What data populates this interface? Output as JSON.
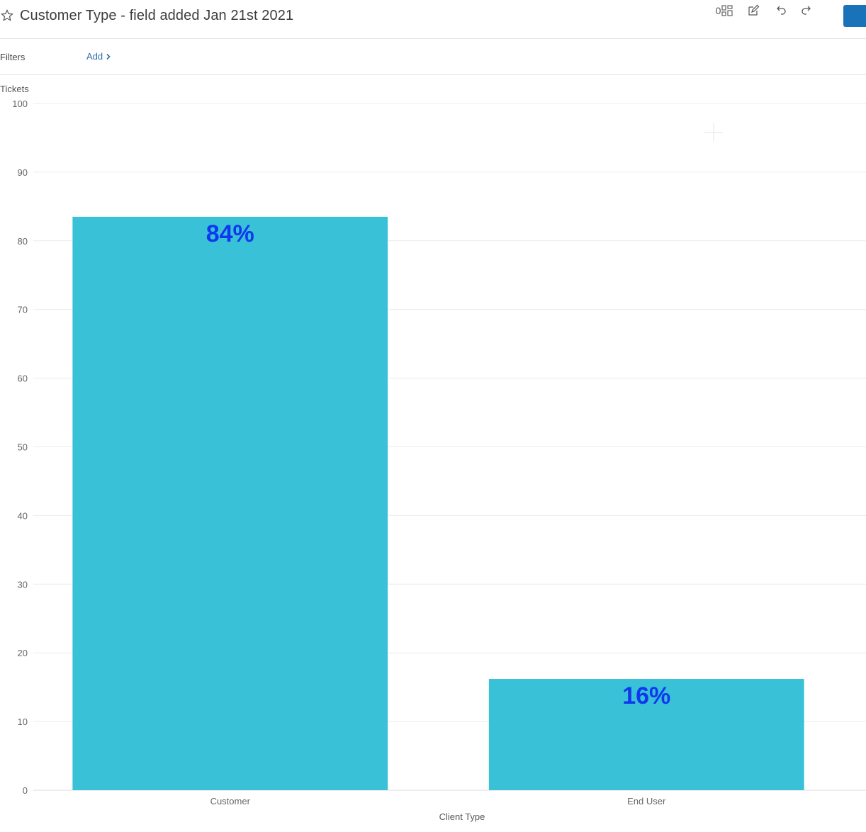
{
  "header": {
    "title": "Customer Type - field added Jan 21st 2021",
    "widget_count": "0"
  },
  "filters": {
    "label": "Filters",
    "add_label": "Add"
  },
  "colors": {
    "bar": "#38c1d7",
    "data_label": "#1037f0",
    "primary_button": "#1a73b8"
  },
  "chart_data": {
    "type": "bar",
    "title": "",
    "xlabel": "Client Type",
    "ylabel": "Tickets",
    "categories": [
      "Customer",
      "End User"
    ],
    "values": [
      83.5,
      16.2
    ],
    "data_labels": [
      "84%",
      "16%"
    ],
    "ylim": [
      0,
      100
    ],
    "yticks": [
      0,
      10,
      20,
      30,
      40,
      50,
      60,
      70,
      80,
      90,
      100
    ],
    "grid": true
  }
}
